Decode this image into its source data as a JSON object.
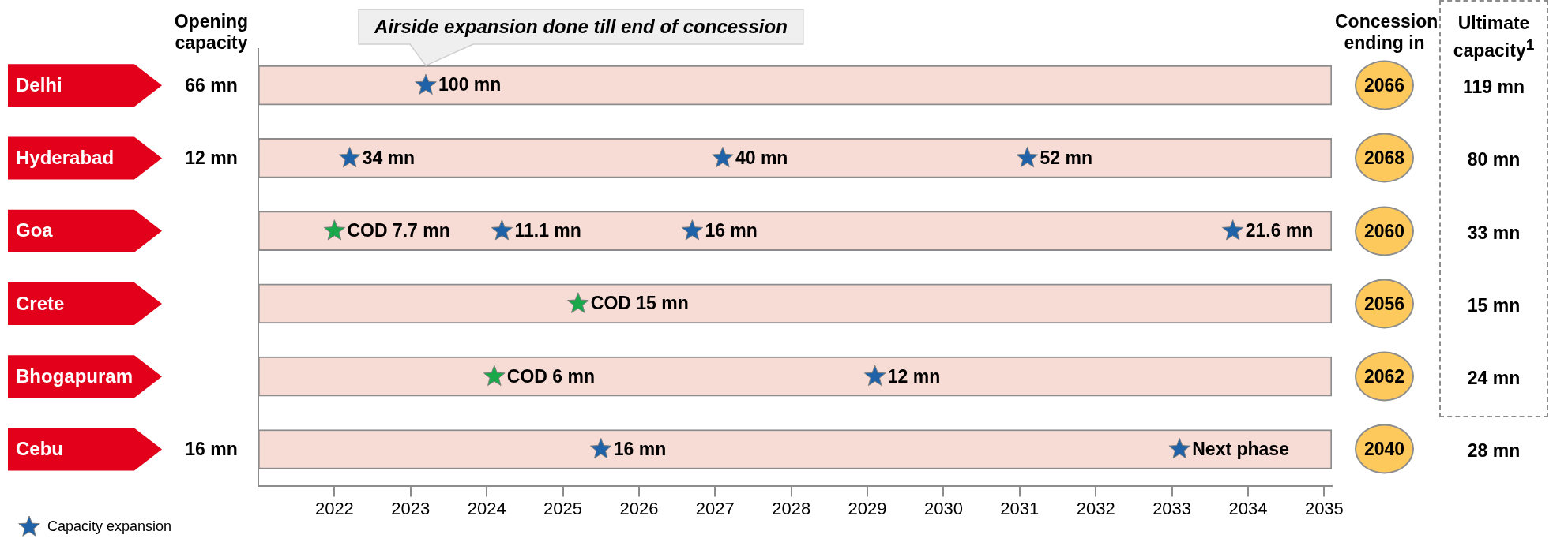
{
  "chart_data": [
    {
      "type": "other",
      "title": "Opening capacity",
      "annotations": [
        {
          "text": "66 mn",
          "y": "Delhi"
        },
        {
          "text": "12 mn",
          "y": "Hyderabad"
        },
        {
          "text": "16 mn",
          "y": "Cebu"
        }
      ]
    },
    {
      "type": "scatter",
      "orientation": "horizontal",
      "categories": [
        "Delhi",
        "Hyderabad",
        "Goa",
        "Crete",
        "Bhogapuram",
        "Cebu"
      ],
      "xlim": [
        2021,
        2035.1
      ],
      "xticks": [
        2022,
        2023,
        2024,
        2025,
        2026,
        2027,
        2028,
        2029,
        2030,
        2031,
        2032,
        2033,
        2034,
        2035
      ],
      "grid": false,
      "legend": "bottom left",
      "marker": "star",
      "annotations": [
        "Airside expansion done till end of concession",
        {
          "text": "100 mn",
          "x": 2023.2,
          "y": "Delhi"
        },
        {
          "text": "34 mn",
          "x": 2022.2,
          "y": "Hyderabad"
        },
        {
          "text": "40 mn",
          "x": 2027.1,
          "y": "Hyderabad"
        },
        {
          "text": "52 mn",
          "x": 2031.1,
          "y": "Hyderabad"
        },
        {
          "text": "COD 7.7 mn",
          "x": 2022.0,
          "y": "Goa"
        },
        {
          "text": "11.1 mn",
          "x": 2024.2,
          "y": "Goa"
        },
        {
          "text": "16 mn",
          "x": 2026.7,
          "y": "Goa"
        },
        {
          "text": "21.6 mn",
          "x": 2033.8,
          "y": "Goa"
        },
        {
          "text": "COD 15 mn",
          "x": 2025.2,
          "y": "Crete"
        },
        {
          "text": "COD 6 mn",
          "x": 2024.1,
          "y": "Bhogapuram"
        },
        {
          "text": "12 mn",
          "x": 2029.1,
          "y": "Bhogapuram"
        },
        {
          "text": "16 mn",
          "x": 2025.5,
          "y": "Cebu"
        },
        {
          "text": "Next phase",
          "x": 2033.1,
          "y": "Cebu"
        }
      ],
      "series": [
        {
          "type": "bar",
          "color": "#f7dcd6",
          "base": [
            2021,
            2021,
            2021,
            2021,
            2021,
            2021
          ],
          "values": [
            14.1,
            14.1,
            14.1,
            14.1,
            14.1,
            14.1
          ]
        },
        {
          "name": "Capacity expansion",
          "color": "#1f62a8",
          "values": [
            2023.2,
            2022.2,
            2024.2,
            null,
            2029.1,
            2025.5
          ]
        },
        {
          "color": "#1f62a8",
          "values": [
            null,
            2027.1,
            2026.7,
            null,
            null,
            2033.1
          ]
        },
        {
          "color": "#1f62a8",
          "values": [
            null,
            2031.1,
            2033.8,
            null,
            null,
            null
          ]
        },
        {
          "color": "#1aa84a",
          "values": [
            null,
            null,
            2022.0,
            2025.2,
            2024.1,
            null
          ]
        }
      ]
    },
    {
      "type": "other",
      "title": "Concession ending in",
      "annotations": [
        {
          "text": "2066",
          "y": "Delhi"
        },
        {
          "text": "2068",
          "y": "Hyderabad"
        },
        {
          "text": "2060",
          "y": "Goa"
        },
        {
          "text": "2056",
          "y": "Crete"
        },
        {
          "text": "2062",
          "y": "Bhogapuram"
        },
        {
          "text": "2040",
          "y": "Cebu"
        }
      ]
    },
    {
      "type": "other",
      "title": "Ultimate capacity$^{1}$",
      "annotations": [
        {
          "text": "119 mn",
          "y": "Delhi"
        },
        {
          "text": "80 mn",
          "y": "Hyderabad"
        },
        {
          "text": "33 mn",
          "y": "Goa"
        },
        {
          "text": "15 mn",
          "y": "Crete"
        },
        {
          "text": "24 mn",
          "y": "Bhogapuram"
        },
        {
          "text": "28 mn",
          "y": "Cebu"
        }
      ]
    }
  ]
}
